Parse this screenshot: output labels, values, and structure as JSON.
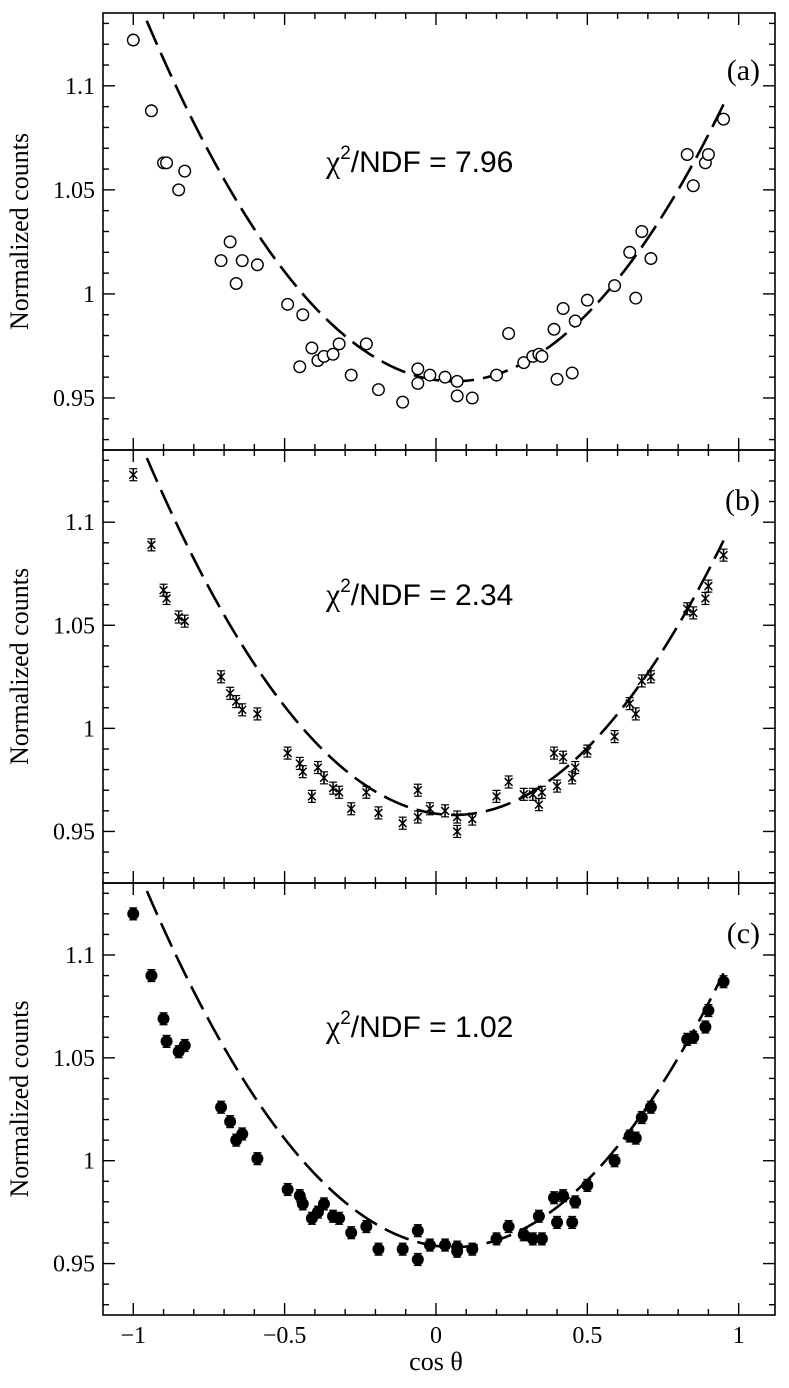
{
  "chart_data": {
    "type": "scatter",
    "layout": "three vertically stacked panels sharing x-axis",
    "xlabel": "cos θ",
    "ylabel": "Normalized counts",
    "xlim": [
      -1.1,
      1.12
    ],
    "ylim": [
      0.925,
      1.135
    ],
    "x_ticks": [
      -1,
      -0.5,
      0,
      0.5,
      1
    ],
    "x_tick_labels": [
      "−1",
      "−0.5",
      "0",
      "0.5",
      "1"
    ],
    "y_ticks": [
      0.95,
      1.0,
      1.05,
      1.1
    ],
    "y_tick_labels": [
      "0.95",
      "1",
      "1.05",
      "1.1"
    ],
    "fit": {
      "style": "dashed",
      "form": "a + b·(x − c)²",
      "a": 0.958,
      "b": 0.168,
      "c": 0.06,
      "x_range": [
        -1.0,
        0.95
      ]
    },
    "x": [
      -1.0,
      -0.94,
      -0.9,
      -0.89,
      -0.85,
      -0.83,
      -0.71,
      -0.68,
      -0.66,
      -0.64,
      -0.59,
      -0.49,
      -0.45,
      -0.44,
      -0.41,
      -0.39,
      -0.37,
      -0.34,
      -0.32,
      -0.28,
      -0.23,
      -0.19,
      -0.11,
      -0.06,
      -0.06,
      -0.02,
      0.03,
      0.07,
      0.07,
      0.12,
      0.2,
      0.24,
      0.29,
      0.32,
      0.34,
      0.35,
      0.39,
      0.4,
      0.42,
      0.45,
      0.46,
      0.5,
      0.59,
      0.64,
      0.66,
      0.68,
      0.71,
      0.83,
      0.85,
      0.89,
      0.9,
      0.95
    ],
    "panels": [
      {
        "label": "(a)",
        "chi2_prefix": "χ",
        "chi2_sup": "2",
        "chi2_suffix": "/NDF = 7.96",
        "marker": "open-circle",
        "error_bars": false,
        "y": [
          1.122,
          1.088,
          1.063,
          1.063,
          1.05,
          1.059,
          1.016,
          1.025,
          1.005,
          1.016,
          1.014,
          0.995,
          0.965,
          0.99,
          0.974,
          0.968,
          0.97,
          0.971,
          0.976,
          0.961,
          0.976,
          0.954,
          0.948,
          0.957,
          0.964,
          0.961,
          0.96,
          0.951,
          0.958,
          0.95,
          0.961,
          0.981,
          0.967,
          0.97,
          0.971,
          0.97,
          0.983,
          0.959,
          0.993,
          0.962,
          0.987,
          0.997,
          1.004,
          1.02,
          0.998,
          1.03,
          1.017,
          1.067,
          1.052,
          1.063,
          1.067,
          1.084
        ]
      },
      {
        "label": "(b)",
        "chi2_prefix": "χ",
        "chi2_sup": "2",
        "chi2_suffix": "/NDF = 2.34",
        "marker": "asterisk",
        "error_bars": true,
        "y": [
          1.123,
          1.089,
          1.067,
          1.063,
          1.054,
          1.052,
          1.025,
          1.017,
          1.013,
          1.009,
          1.007,
          0.988,
          0.983,
          0.979,
          0.967,
          0.981,
          0.976,
          0.971,
          0.969,
          0.961,
          0.969,
          0.959,
          0.954,
          0.97,
          0.957,
          0.961,
          0.96,
          0.95,
          0.957,
          0.956,
          0.967,
          0.974,
          0.968,
          0.968,
          0.963,
          0.969,
          0.988,
          0.972,
          0.986,
          0.976,
          0.981,
          0.989,
          0.996,
          1.012,
          1.007,
          1.023,
          1.025,
          1.058,
          1.056,
          1.063,
          1.069,
          1.084
        ]
      },
      {
        "label": "(c)",
        "chi2_prefix": "χ",
        "chi2_sup": "2",
        "chi2_suffix": "/NDF = 1.02",
        "marker": "filled-circle",
        "error_bars": true,
        "y": [
          1.12,
          1.09,
          1.069,
          1.058,
          1.053,
          1.056,
          1.026,
          1.019,
          1.01,
          1.013,
          1.001,
          0.986,
          0.983,
          0.979,
          0.972,
          0.975,
          0.979,
          0.973,
          0.972,
          0.965,
          0.968,
          0.957,
          0.957,
          0.966,
          0.952,
          0.959,
          0.959,
          0.958,
          0.956,
          0.957,
          0.962,
          0.968,
          0.964,
          0.962,
          0.973,
          0.962,
          0.982,
          0.97,
          0.983,
          0.97,
          0.98,
          0.988,
          1.0,
          1.012,
          1.011,
          1.021,
          1.026,
          1.059,
          1.06,
          1.065,
          1.073,
          1.087
        ]
      }
    ]
  }
}
